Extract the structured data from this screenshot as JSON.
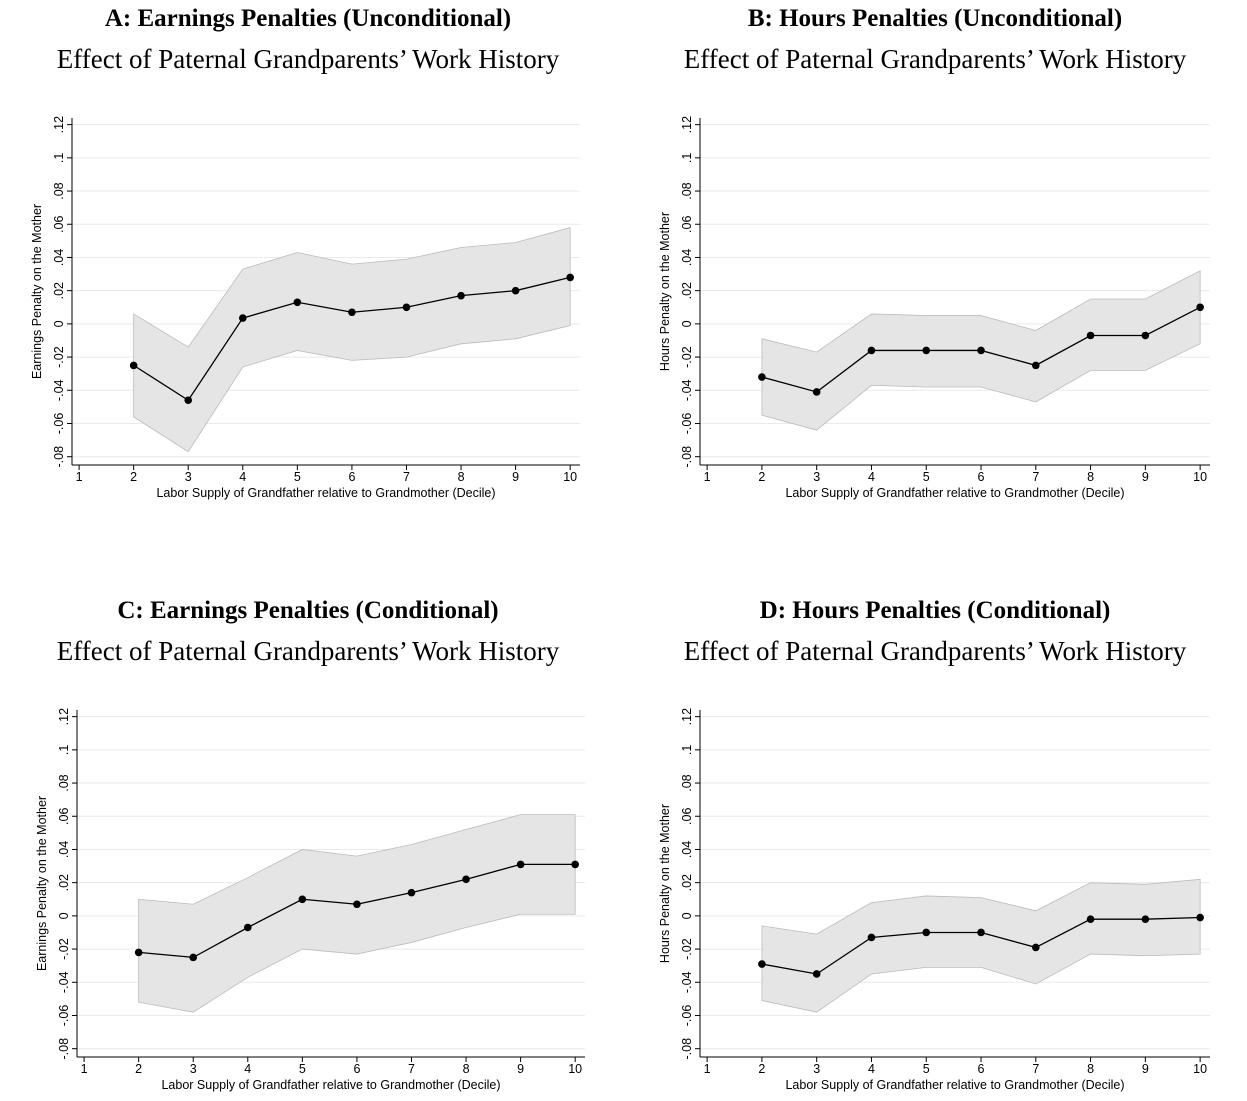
{
  "chart_data": [
    {
      "type": "line",
      "title": "A: Earnings Penalties (Unconditional)",
      "subtitle": "Effect of Paternal Grandparents’ Work History",
      "x_label": "Labor Supply of Grandfather relative to Grandmother (Decile)",
      "y_label": "Earnings Penalty on the Mother",
      "x": [
        2,
        3,
        4,
        5,
        6,
        7,
        8,
        9,
        10
      ],
      "values": [
        -0.025,
        -0.046,
        0.0035,
        0.013,
        0.007,
        0.01,
        0.017,
        0.02,
        0.028
      ],
      "upper": [
        0.006,
        -0.014,
        0.033,
        0.043,
        0.036,
        0.039,
        0.046,
        0.049,
        0.058
      ],
      "lower": [
        -0.056,
        -0.077,
        -0.026,
        -0.016,
        -0.022,
        -0.02,
        -0.012,
        -0.009,
        -0.001
      ],
      "color": "#000000",
      "band_color": "#e5e5e5",
      "grid": true,
      "xlim": [
        0.87,
        10.18
      ],
      "xticks": [
        1,
        2,
        3,
        4,
        5,
        6,
        7,
        8,
        9,
        10
      ],
      "ylim": [
        -0.085,
        0.124
      ],
      "yticks": [
        {
          "value": -0.08,
          "label": "-.08"
        },
        {
          "value": -0.06,
          "label": "-.06"
        },
        {
          "value": -0.04,
          "label": "-.04"
        },
        {
          "value": -0.02,
          "label": "-.02"
        },
        0,
        {
          "value": 0.02,
          "label": ".02"
        },
        {
          "value": 0.04,
          "label": ".04"
        },
        {
          "value": 0.06,
          "label": ".06"
        },
        {
          "value": 0.08,
          "label": ".08"
        },
        {
          "value": 0.1,
          "label": ".1"
        },
        {
          "value": 0.12,
          "label": ".12"
        }
      ]
    },
    {
      "type": "line",
      "title": "B: Hours Penalties (Unconditional)",
      "subtitle": "Effect of Paternal Grandparents’ Work History",
      "x_label": "Labor Supply of Grandfather relative to Grandmother (Decile)",
      "y_label": "Hours Penalty on the Mother",
      "x": [
        2,
        3,
        4,
        5,
        6,
        7,
        8,
        9,
        10
      ],
      "values": [
        -0.032,
        -0.041,
        -0.016,
        -0.016,
        -0.016,
        -0.025,
        -0.007,
        -0.007,
        0.01
      ],
      "upper": [
        -0.009,
        -0.017,
        0.006,
        0.005,
        0.005,
        -0.004,
        0.015,
        0.015,
        0.032
      ],
      "lower": [
        -0.055,
        -0.064,
        -0.037,
        -0.038,
        -0.038,
        -0.047,
        -0.028,
        -0.028,
        -0.012
      ],
      "color": "#000000",
      "band_color": "#e5e5e5",
      "grid": true,
      "xlim": [
        0.87,
        10.18
      ],
      "xticks": [
        1,
        2,
        3,
        4,
        5,
        6,
        7,
        8,
        9,
        10
      ],
      "ylim": [
        -0.085,
        0.124
      ],
      "yticks": [
        {
          "value": -0.08,
          "label": "-.08"
        },
        {
          "value": -0.06,
          "label": "-.06"
        },
        {
          "value": -0.04,
          "label": "-.04"
        },
        {
          "value": -0.02,
          "label": "-.02"
        },
        0,
        {
          "value": 0.02,
          "label": ".02"
        },
        {
          "value": 0.04,
          "label": ".04"
        },
        {
          "value": 0.06,
          "label": ".06"
        },
        {
          "value": 0.08,
          "label": ".08"
        },
        {
          "value": 0.1,
          "label": ".1"
        },
        {
          "value": 0.12,
          "label": ".12"
        }
      ]
    },
    {
      "type": "line",
      "title": "C: Earnings Penalties (Conditional)",
      "subtitle": "Effect of Paternal Grandparents’ Work History",
      "x_label": "Labor Supply of Grandfather relative to Grandmother (Decile)",
      "y_label": "Earnings Penalty on the Mother",
      "x": [
        2,
        3,
        4,
        5,
        6,
        7,
        8,
        9,
        10
      ],
      "values": [
        -0.022,
        -0.025,
        -0.007,
        0.01,
        0.007,
        0.014,
        0.022,
        0.031,
        0.031
      ],
      "upper": [
        0.01,
        0.007,
        0.023,
        0.04,
        0.036,
        0.043,
        0.052,
        0.061,
        0.061
      ],
      "lower": [
        -0.052,
        -0.058,
        -0.037,
        -0.02,
        -0.023,
        -0.016,
        -0.007,
        0.001,
        0.001
      ],
      "color": "#000000",
      "band_color": "#e5e5e5",
      "grid": true,
      "xlim": [
        0.87,
        10.18
      ],
      "xticks": [
        1,
        2,
        3,
        4,
        5,
        6,
        7,
        8,
        9,
        10
      ],
      "ylim": [
        -0.085,
        0.124
      ],
      "yticks": [
        {
          "value": -0.08,
          "label": "-.08"
        },
        {
          "value": -0.06,
          "label": "-.06"
        },
        {
          "value": -0.04,
          "label": "-.04"
        },
        {
          "value": -0.02,
          "label": "-.02"
        },
        0,
        {
          "value": 0.02,
          "label": ".02"
        },
        {
          "value": 0.04,
          "label": ".04"
        },
        {
          "value": 0.06,
          "label": ".06"
        },
        {
          "value": 0.08,
          "label": ".08"
        },
        {
          "value": 0.1,
          "label": ".1"
        },
        {
          "value": 0.12,
          "label": ".12"
        }
      ]
    },
    {
      "type": "line",
      "title": "D: Hours Penalties (Conditional)",
      "subtitle": "Effect of Paternal Grandparents’ Work History",
      "x_label": "Labor Supply of Grandfather relative to Grandmother (Decile)",
      "y_label": "Hours Penalty on the Mother",
      "x": [
        2,
        3,
        4,
        5,
        6,
        7,
        8,
        9,
        10
      ],
      "values": [
        -0.029,
        -0.035,
        -0.013,
        -0.01,
        -0.01,
        -0.019,
        -0.002,
        -0.002,
        -0.001
      ],
      "upper": [
        -0.006,
        -0.011,
        0.008,
        0.012,
        0.011,
        0.003,
        0.02,
        0.019,
        0.022
      ],
      "lower": [
        -0.051,
        -0.058,
        -0.035,
        -0.031,
        -0.031,
        -0.041,
        -0.023,
        -0.024,
        -0.023
      ],
      "color": "#000000",
      "band_color": "#e5e5e5",
      "grid": true,
      "xlim": [
        0.87,
        10.18
      ],
      "xticks": [
        1,
        2,
        3,
        4,
        5,
        6,
        7,
        8,
        9,
        10
      ],
      "ylim": [
        -0.085,
        0.124
      ],
      "yticks": [
        {
          "value": -0.08,
          "label": "-.08"
        },
        {
          "value": -0.06,
          "label": "-.06"
        },
        {
          "value": -0.04,
          "label": "-.04"
        },
        {
          "value": -0.02,
          "label": "-.02"
        },
        0,
        {
          "value": 0.02,
          "label": ".02"
        },
        {
          "value": 0.04,
          "label": ".04"
        },
        {
          "value": 0.06,
          "label": ".06"
        },
        {
          "value": 0.08,
          "label": ".08"
        },
        {
          "value": 0.1,
          "label": ".1"
        },
        {
          "value": 0.12,
          "label": ".12"
        }
      ]
    }
  ]
}
